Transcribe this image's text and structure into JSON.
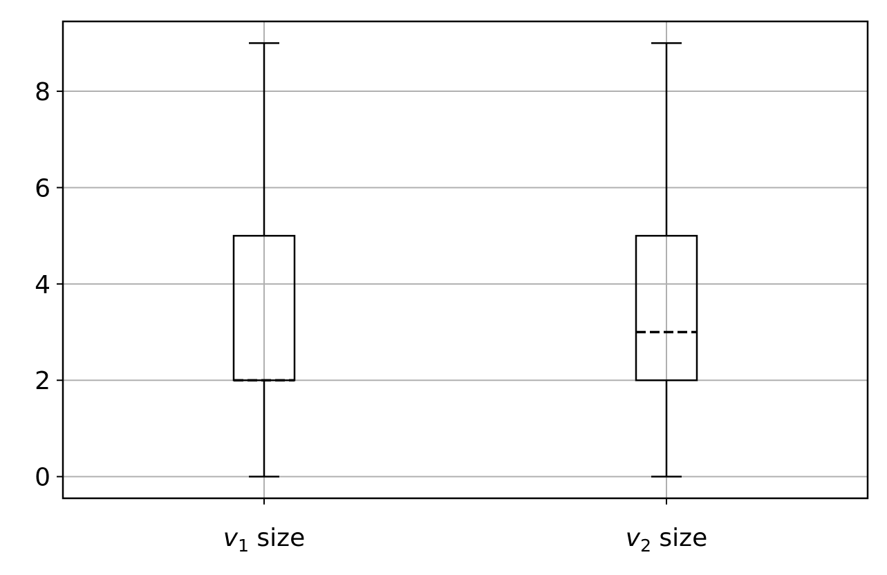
{
  "chart_data": {
    "type": "boxplot",
    "categories": [
      {
        "var": "v",
        "sub": "1",
        "rest": " size"
      },
      {
        "var": "v",
        "sub": "2",
        "rest": " size"
      }
    ],
    "boxes": [
      {
        "whisker_low": 0,
        "q1": 2,
        "median": 2,
        "q3": 5,
        "whisker_high": 9
      },
      {
        "whisker_low": 0,
        "q1": 2,
        "median": 3,
        "q3": 5,
        "whisker_high": 9
      }
    ],
    "yticks": [
      0,
      2,
      4,
      6,
      8
    ],
    "ylim": [
      -0.45,
      9.45
    ],
    "grid": true,
    "median_style": "dashed",
    "colors": {
      "box": "#000000",
      "grid": "#b0b0b0",
      "axes": "#000000"
    }
  }
}
